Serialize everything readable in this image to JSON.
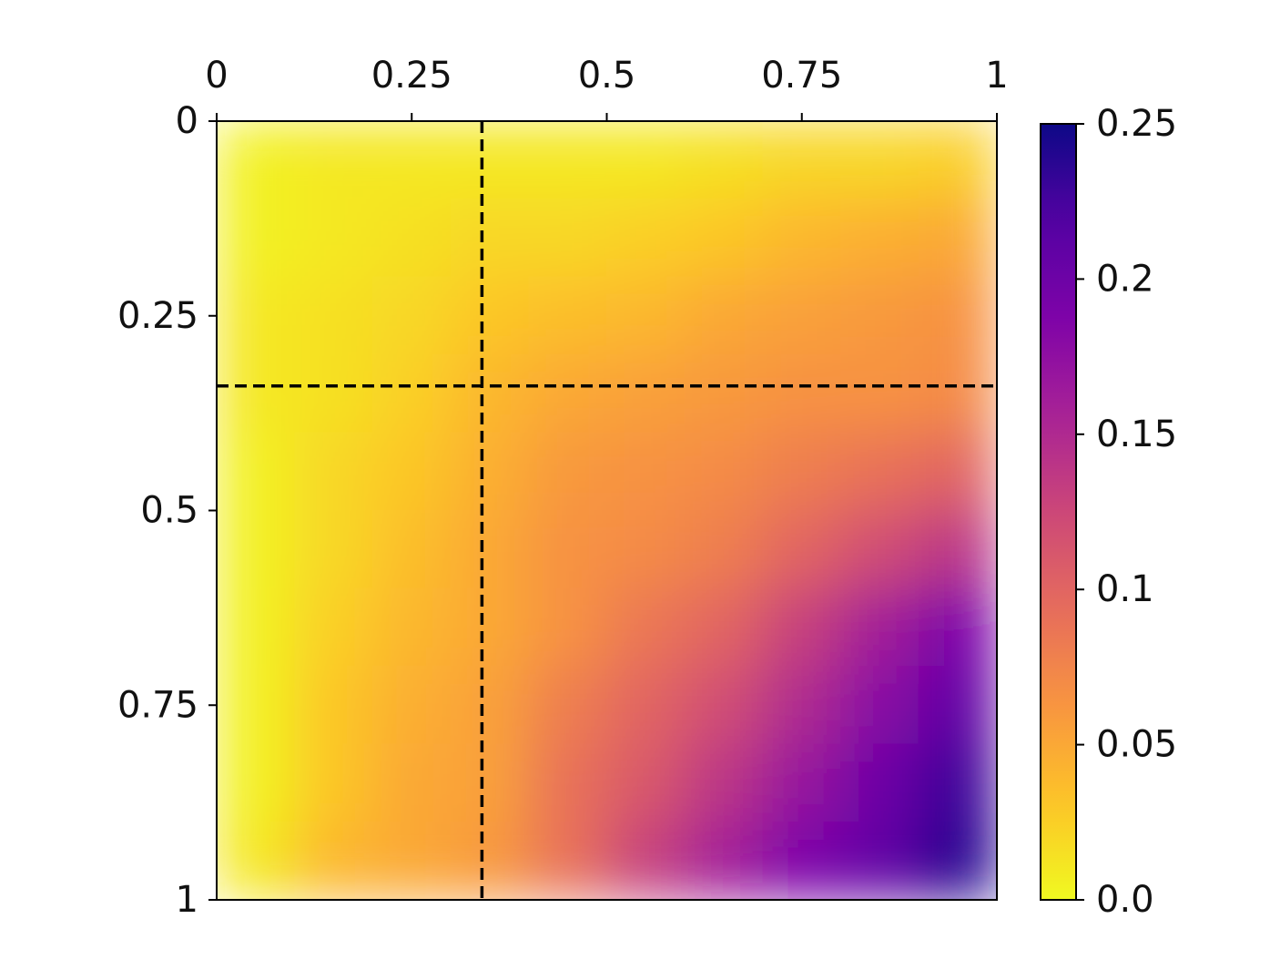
{
  "chart_data": {
    "type": "heatmap",
    "colormap": "plasma_r",
    "xlim": [
      0,
      1
    ],
    "ylim": [
      0,
      1
    ],
    "invert_y": true,
    "xticks": [
      0,
      0.25,
      0.5,
      0.75,
      1
    ],
    "yticks": [
      0,
      0.25,
      0.5,
      0.75,
      1
    ],
    "clim": [
      0,
      0.25
    ],
    "cticks": [
      {
        "value": 0,
        "label": "0.0"
      },
      0.05,
      0.1,
      0.15,
      0.2,
      0.25
    ],
    "vlines": [
      0.34
    ],
    "hlines": [
      0.34
    ],
    "values": [
      [
        0.005,
        0.01,
        0.01,
        0.01,
        0.01,
        0.01,
        0.015,
        0.02,
        0.02,
        0.025
      ],
      [
        0.005,
        0.01,
        0.015,
        0.02,
        0.02,
        0.025,
        0.03,
        0.04,
        0.045,
        0.05
      ],
      [
        0.01,
        0.015,
        0.02,
        0.03,
        0.035,
        0.04,
        0.05,
        0.055,
        0.06,
        0.065
      ],
      [
        0.01,
        0.015,
        0.025,
        0.04,
        0.05,
        0.055,
        0.06,
        0.065,
        0.065,
        0.07
      ],
      [
        0.005,
        0.02,
        0.03,
        0.045,
        0.06,
        0.065,
        0.07,
        0.08,
        0.09,
        0.1
      ],
      [
        0.005,
        0.02,
        0.035,
        0.05,
        0.065,
        0.07,
        0.08,
        0.1,
        0.12,
        0.14
      ],
      [
        0.005,
        0.025,
        0.04,
        0.05,
        0.065,
        0.085,
        0.1,
        0.13,
        0.16,
        0.19
      ],
      [
        0.005,
        0.03,
        0.045,
        0.055,
        0.08,
        0.1,
        0.12,
        0.15,
        0.18,
        0.21
      ],
      [
        0.005,
        0.03,
        0.05,
        0.055,
        0.09,
        0.11,
        0.14,
        0.17,
        0.2,
        0.23
      ],
      [
        0.01,
        0.04,
        0.05,
        0.06,
        0.09,
        0.13,
        0.16,
        0.19,
        0.21,
        0.24
      ]
    ]
  }
}
